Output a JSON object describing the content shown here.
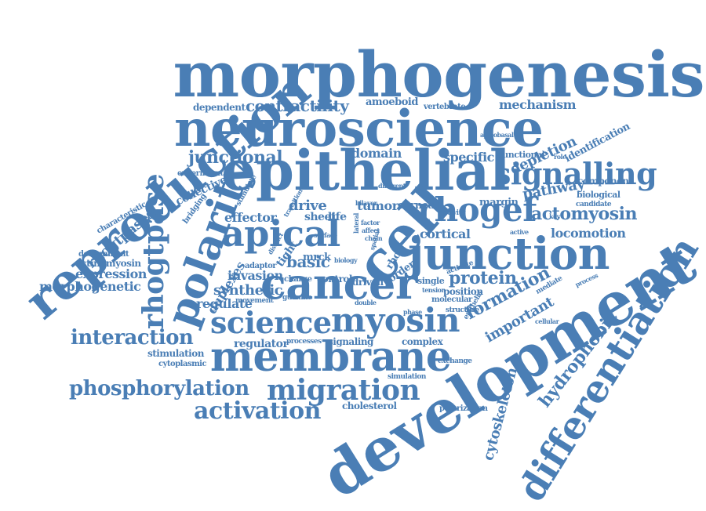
{
  "palette": {
    "word_color": "#4a7eb5",
    "background": "#ffffff"
  },
  "words": [
    "reproduction",
    "morphogenesis",
    "neuroscience",
    "development",
    "epithelial",
    "cancer",
    "junction",
    "apical",
    "polarity",
    "cell",
    "rhogef",
    "rhogtpase",
    "membrane",
    "myosin",
    "science",
    "differentiation",
    "signalling",
    "migration",
    "phosphorylation",
    "activation",
    "interaction",
    "actomyosin",
    "junctional",
    "contractility",
    "hydrophobic",
    "cytoskeleton",
    "formation",
    "rhogtpases",
    "protein",
    "important",
    "depletion",
    "pathway",
    "locomotion",
    "mechanism",
    "domain",
    "specific",
    "expression",
    "morphogenetic",
    "invasion",
    "synthetic",
    "duplexes",
    "basic",
    "effector",
    "collective",
    "regulate",
    "stimulation",
    "cytoplasmic",
    "regulator",
    "processes",
    "signaling",
    "complex",
    "cholesterol",
    "polarization",
    "simulation",
    "exchange",
    "identification",
    "functional",
    "component",
    "biological",
    "candidate",
    "dependent",
    "amoeboid",
    "vertebrate",
    "drive",
    "tumor",
    "sheet",
    "life",
    "corneal",
    "margin",
    "position",
    "cortical",
    "actinomyosin",
    "determinant",
    "characteristic",
    "experiment",
    "bridging",
    "adaptor",
    "tight",
    "mrck",
    "control",
    "charge",
    "guanine",
    "movement",
    "molecular",
    "structure",
    "epithelia",
    "mediate",
    "single",
    "activate",
    "border",
    "rhoa",
    "driven",
    "biology",
    "different",
    "transition",
    "activity",
    "bilayer",
    "factor",
    "surface",
    "distinct",
    "double",
    "spatial",
    "lateral",
    "affect",
    "chain",
    "stimulate",
    "tension",
    "phase",
    "apicobasal",
    "cellular",
    "key",
    "process",
    "active",
    "role"
  ]
}
